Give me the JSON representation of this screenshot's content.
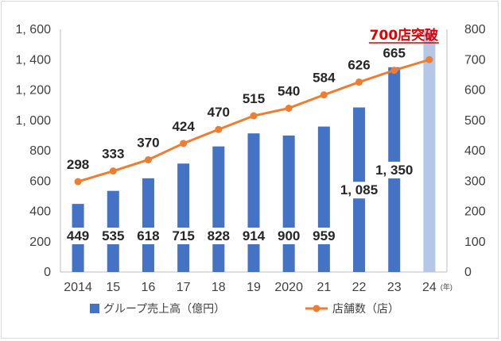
{
  "chart_data": {
    "type": "bar+line",
    "categories": [
      "2014",
      "15",
      "16",
      "17",
      "18",
      "19",
      "2020",
      "21",
      "22",
      "23",
      "24"
    ],
    "x_unit": "(年)",
    "series": [
      {
        "name": "グループ売上高（億円）",
        "type": "bar",
        "axis": "left",
        "values": [
          449,
          535,
          618,
          715,
          828,
          914,
          900,
          959,
          1085,
          1350,
          null
        ],
        "labels": [
          "449",
          "535",
          "618",
          "715",
          "828",
          "914",
          "900",
          "959",
          "1, 085",
          "1, 350",
          ""
        ]
      },
      {
        "name": "店舗数（店）",
        "type": "line",
        "axis": "right",
        "values": [
          298,
          333,
          370,
          424,
          470,
          515,
          540,
          584,
          626,
          665,
          700
        ],
        "labels": [
          "298",
          "333",
          "370",
          "424",
          "470",
          "515",
          "540",
          "584",
          "626",
          "665",
          ""
        ]
      }
    ],
    "highlight_bar": {
      "category": "24",
      "left_value": 1600
    },
    "annotation": "700店突破",
    "y_left": {
      "min": 0,
      "max": 1600,
      "ticks": [
        "0",
        "200",
        "400",
        "600",
        "800",
        "1, 000",
        "1, 200",
        "1, 400",
        "1, 600"
      ]
    },
    "y_right": {
      "min": 0,
      "max": 800,
      "ticks": [
        "0",
        "100",
        "200",
        "300",
        "400",
        "500",
        "600",
        "700",
        "800"
      ]
    },
    "legend_position": "bottom",
    "grid": false,
    "colors": {
      "bar": "#4472c4",
      "highlight": "#b4c7e7",
      "line": "#ed7d31",
      "annotation": "#e00000"
    }
  }
}
